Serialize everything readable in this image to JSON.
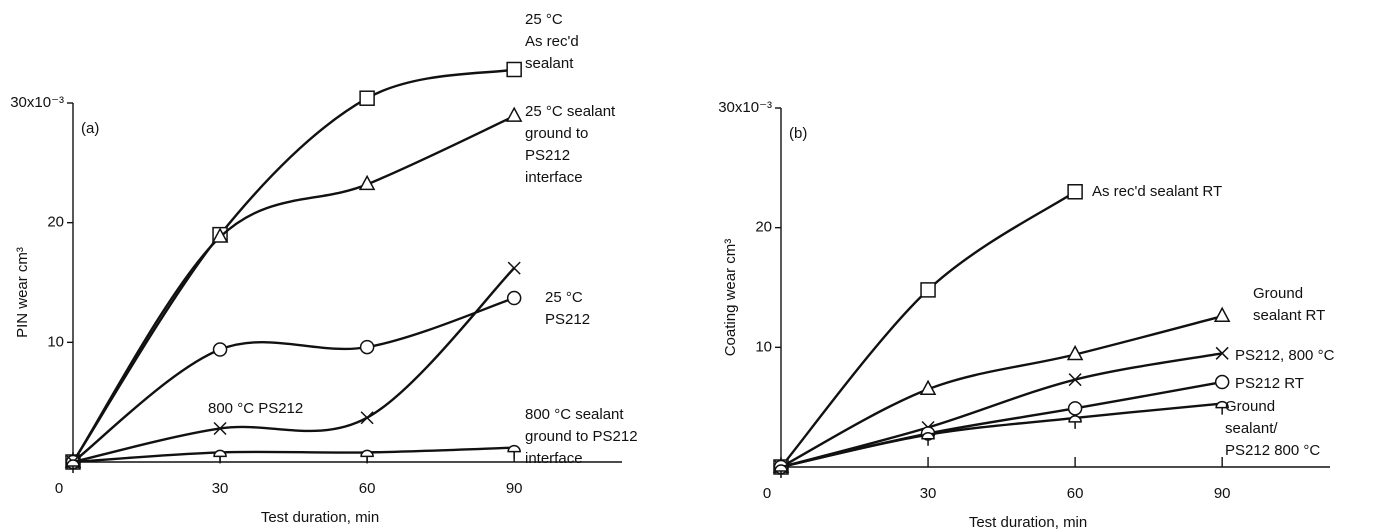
{
  "chart_data": [
    {
      "type": "line",
      "panel_label": "(a)",
      "x_label": "Test duration, min",
      "y_label": "PIN wear cm³",
      "x": [
        0,
        30,
        60,
        90
      ],
      "xlim": [
        0,
        112
      ],
      "xticks": [
        0,
        30,
        60,
        90
      ],
      "ylim": [
        0,
        30
      ],
      "yticks": [
        10,
        20,
        {
          "value": 30,
          "label": "30x10⁻³"
        }
      ],
      "series": [
        {
          "name": [
            "25 °C",
            "As rec'd",
            "sealant"
          ],
          "marker": "square",
          "color": "#111111",
          "values": [
            0,
            19.0,
            30.4,
            32.8
          ]
        },
        {
          "name": [
            "25 °C sealant",
            "ground to",
            "PS212",
            "interface"
          ],
          "marker": "triangle",
          "color": "#111111",
          "values": [
            0,
            18.8,
            23.2,
            28.9
          ]
        },
        {
          "name": [
            "25 °C",
            "PS212"
          ],
          "marker": "circle",
          "color": "#111111",
          "values": [
            0,
            9.4,
            9.6,
            13.7
          ]
        },
        {
          "name": [
            "800 °C PS212"
          ],
          "marker": "x",
          "color": "#111111",
          "values": [
            0,
            2.8,
            3.7,
            16.2
          ]
        },
        {
          "name": [
            "800 °C sealant",
            "ground to PS212",
            "interface"
          ],
          "marker": "half",
          "color": "#111111",
          "values": [
            0,
            0.8,
            0.8,
            1.2
          ]
        }
      ]
    },
    {
      "type": "line",
      "panel_label": "(b)",
      "x_label": "Test duration, min",
      "y_label": "Coating wear cm³",
      "x": [
        0,
        30,
        60,
        90
      ],
      "xlim": [
        0,
        112
      ],
      "xticks": [
        0,
        30,
        60,
        90
      ],
      "ylim": [
        0,
        30
      ],
      "yticks": [
        10,
        20,
        {
          "value": 30,
          "label": "30x10⁻³"
        }
      ],
      "series": [
        {
          "name": [
            "As rec'd sealant RT"
          ],
          "marker": "square",
          "color": "#111111",
          "values": [
            0,
            14.8,
            23.0,
            null
          ]
        },
        {
          "name": [
            "Ground",
            "sealant RT"
          ],
          "marker": "triangle",
          "color": "#111111",
          "values": [
            0,
            6.5,
            9.4,
            12.6
          ]
        },
        {
          "name": [
            "PS212, 800 °C"
          ],
          "marker": "x",
          "color": "#111111",
          "values": [
            0,
            3.3,
            7.3,
            9.5
          ]
        },
        {
          "name": [
            "PS212 RT"
          ],
          "marker": "circle",
          "color": "#111111",
          "values": [
            0,
            2.8,
            4.9,
            7.1
          ]
        },
        {
          "name": [
            "Ground",
            "sealant/",
            "PS212 800 °C"
          ],
          "marker": "half",
          "color": "#111111",
          "values": [
            0,
            2.7,
            4.1,
            5.3
          ]
        }
      ]
    }
  ]
}
